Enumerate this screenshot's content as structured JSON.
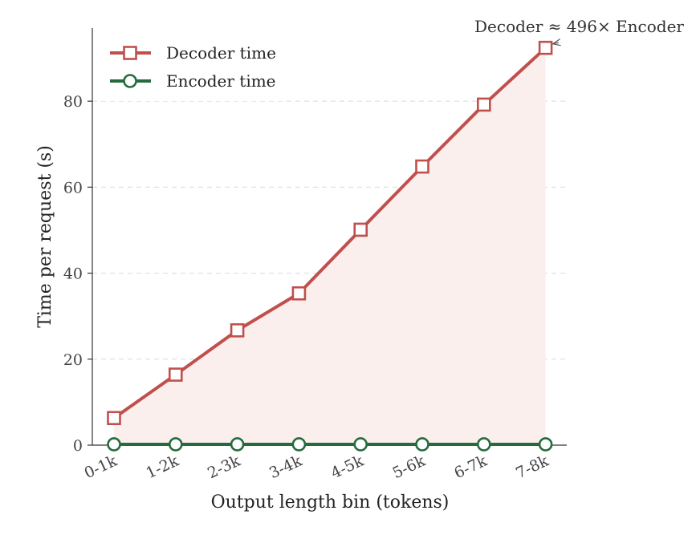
{
  "chart_data": {
    "type": "line",
    "categories": [
      "0-1k",
      "1-2k",
      "2-3k",
      "3-4k",
      "4-5k",
      "5-6k",
      "6-7k",
      "7-8k"
    ],
    "series": [
      {
        "name": "Decoder time",
        "values": [
          6.3,
          16.4,
          26.7,
          35.3,
          50.1,
          64.8,
          79.2,
          92.4
        ],
        "color": "#c0504d",
        "marker": "square",
        "fill": "#fbefed"
      },
      {
        "name": "Encoder time",
        "values": [
          0.19,
          0.19,
          0.19,
          0.19,
          0.19,
          0.19,
          0.19,
          0.19
        ],
        "color": "#256b3d",
        "marker": "circle"
      }
    ],
    "xlabel": "Output length bin (tokens)",
    "ylabel": "Time per request (s)",
    "ylim": [
      0,
      97
    ],
    "yticks": [
      0,
      20,
      40,
      60,
      80
    ],
    "grid": "horizontal-dashed",
    "legend": "top-left",
    "annotation": {
      "text": "Decoder ≈ 496× Encoder",
      "target_category": "7-8k",
      "target_series": "Decoder time"
    }
  }
}
